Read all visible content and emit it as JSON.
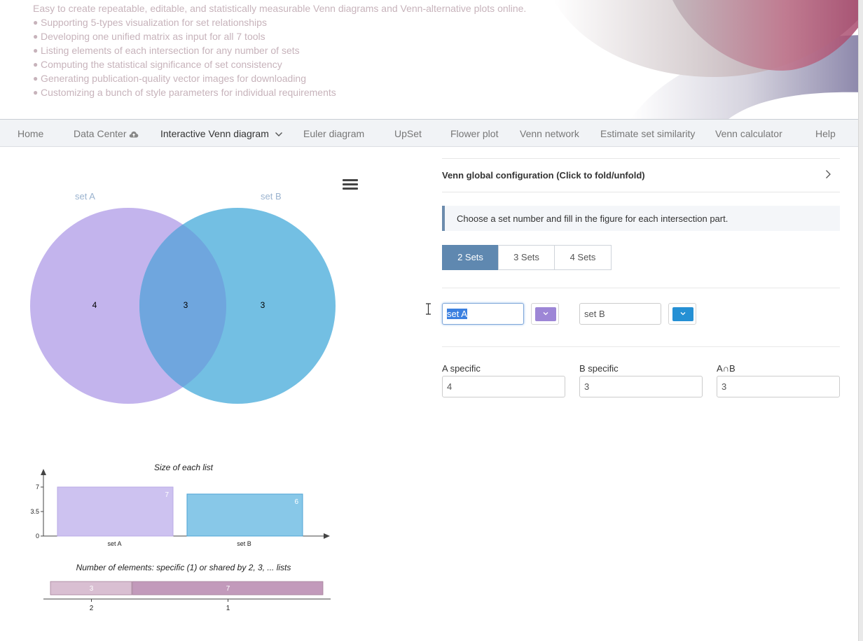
{
  "header": {
    "tagline": "Easy to create repeatable, editable, and statistically measurable Venn diagrams and Venn-alternative plots online.",
    "bullets": [
      "Supporting 5-types visualization for set relationships",
      "Developing one unified matrix as input for all 7 tools",
      "Listing elements of each intersection for any number of sets",
      "Computing the statistical significance of set consistency",
      "Generating publication-quality vector images for downloading",
      "Customizing a bunch of style parameters for individual requirements"
    ]
  },
  "nav": {
    "items": [
      {
        "label": "Home"
      },
      {
        "label": "Data Center"
      },
      {
        "label": "Interactive Venn diagram",
        "active": true
      },
      {
        "label": "Euler diagram"
      },
      {
        "label": "UpSet"
      },
      {
        "label": "Flower plot"
      },
      {
        "label": "Venn network"
      },
      {
        "label": "Estimate set similarity"
      },
      {
        "label": "Venn calculator"
      },
      {
        "label": "Help"
      }
    ]
  },
  "venn": {
    "set_a_label": "set A",
    "set_b_label": "set B",
    "a_only": "4",
    "intersection": "3",
    "b_only": "3",
    "color_a": "#c3b4ed",
    "color_b": "#73bfe3",
    "color_overlap": "#6fa6de"
  },
  "chart_data": [
    {
      "type": "bar",
      "title": "Size of each list",
      "categories": [
        "set A",
        "set B"
      ],
      "values": [
        7,
        6
      ],
      "yticks": [
        "0",
        "3.5",
        "7"
      ],
      "ylim": [
        0,
        7
      ],
      "colors": [
        "#cdc2f0",
        "#88c8e8"
      ]
    },
    {
      "type": "bar",
      "title": "Number of elements: specific (1) or shared by 2, 3, ... lists",
      "categories": [
        "2",
        "1"
      ],
      "values": [
        3,
        7
      ],
      "orientation": "horizontal-stacked",
      "colors": [
        "#d9bfd2",
        "#c29abb"
      ]
    }
  ],
  "config": {
    "panel_title": "Venn global configuration (Click to fold/unfold)",
    "tip": "Choose a set number and fill in the figure for each intersection part.",
    "tabs": [
      {
        "label": "2 Sets",
        "active": true
      },
      {
        "label": "3 Sets"
      },
      {
        "label": "4 Sets"
      }
    ],
    "set_a_name": "set A",
    "set_b_name": "set B",
    "set_a_color": "#9d86d6",
    "set_b_color": "#2590d4",
    "fields": [
      {
        "label": "A specific",
        "value": "4"
      },
      {
        "label": "B specific",
        "value": "3"
      },
      {
        "label": "A∩B",
        "value": "3"
      }
    ]
  }
}
